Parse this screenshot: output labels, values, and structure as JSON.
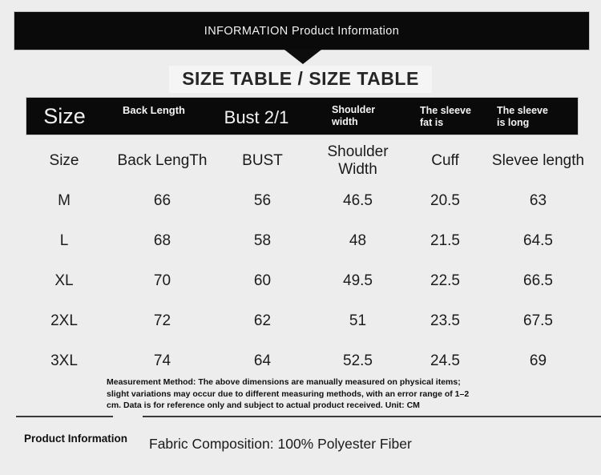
{
  "colors": {
    "background": "#ededed",
    "banner_bg": "#0a0a0a",
    "text": "#1c1c1c"
  },
  "banner": {
    "title": "INFORMATION Product Information"
  },
  "size_section": {
    "title": "SIZE TABLE / SIZE TABLE",
    "header_row": {
      "size": "Size",
      "back_length": "Back Length",
      "bust": "Bust 2/1",
      "shoulder_width": "Shoulder\nwidth",
      "sleeve_fat": "The sleeve\nfat is",
      "sleeve_long": "The sleeve\nis long"
    },
    "subheader_row": {
      "size": "Size",
      "back_length": "Back LengTh",
      "bust": "BUST",
      "shoulder_width": "Shoulder Width",
      "cuff": "Cuff",
      "sleeve_length": "Slevee length"
    },
    "rows": [
      {
        "size": "M",
        "back_length": "66",
        "bust": "56",
        "shoulder_width": "46.5",
        "cuff": "20.5",
        "sleeve_length": "63"
      },
      {
        "size": "L",
        "back_length": "68",
        "bust": "58",
        "shoulder_width": "48",
        "cuff": "21.5",
        "sleeve_length": "64.5"
      },
      {
        "size": "XL",
        "back_length": "70",
        "bust": "60",
        "shoulder_width": "49.5",
        "cuff": "22.5",
        "sleeve_length": "66.5"
      },
      {
        "size": "2XL",
        "back_length": "72",
        "bust": "62",
        "shoulder_width": "51",
        "cuff": "23.5",
        "sleeve_length": "67.5"
      },
      {
        "size": "3XL",
        "back_length": "74",
        "bust": "64",
        "shoulder_width": "52.5",
        "cuff": "24.5",
        "sleeve_length": "69"
      }
    ],
    "note": "Measurement Method: The above dimensions are manually measured on physical items; slight variations may occur due to different measuring methods, with an error range of 1–2 cm. Data is for reference only and subject to actual product received. Unit: CM"
  },
  "footer": {
    "tab_label": "Product Information",
    "fabric_info": "Fabric Composition: 100% Polyester Fiber"
  }
}
